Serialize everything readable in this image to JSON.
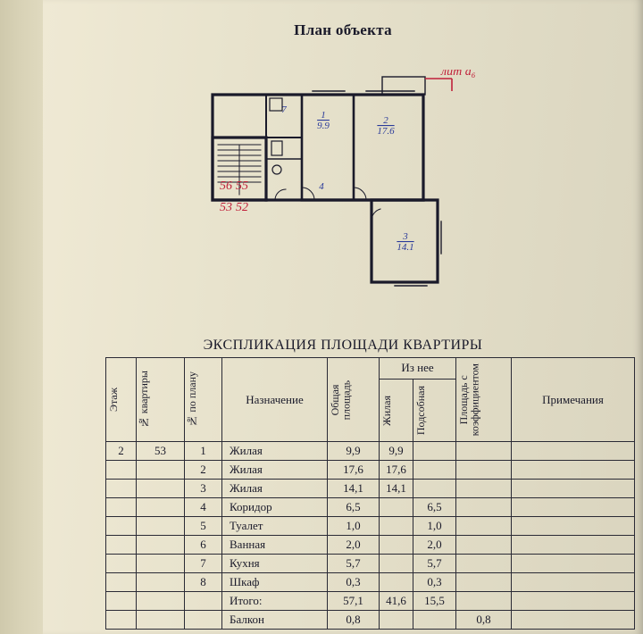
{
  "doc": {
    "title": "План объекта",
    "table_title": "ЭКСПЛИКАЦИЯ ПЛОЩАДИ КВАРТИРЫ",
    "handwriting": {
      "top_note": "лит а₆"
    }
  },
  "plan": {
    "rooms": [
      {
        "id": "1",
        "area": "9.9"
      },
      {
        "id": "2",
        "area": "17.6"
      },
      {
        "id": "3",
        "area": "14.1"
      },
      {
        "id": "4",
        "area": ""
      },
      {
        "id": "7",
        "area": ""
      }
    ],
    "red_labels": [
      "56",
      "55",
      "53",
      "52"
    ]
  },
  "table": {
    "headers": {
      "floor": "Этаж",
      "apt_no": "№ квартиры",
      "plan_no": "№ по плану",
      "purpose": "Назначение",
      "total_area": "Общая площадь",
      "of_it": "Из нее",
      "living": "Жилая",
      "aux": "Подсобная",
      "coef": "Площадь с коэффициентом",
      "notes": "Примечания"
    },
    "rows": [
      {
        "floor": "2",
        "apt": "53",
        "no": "1",
        "purpose": "Жилая",
        "total": "9,9",
        "living": "9,9",
        "aux": "",
        "coef": "",
        "notes": ""
      },
      {
        "floor": "",
        "apt": "",
        "no": "2",
        "purpose": "Жилая",
        "total": "17,6",
        "living": "17,6",
        "aux": "",
        "coef": "",
        "notes": ""
      },
      {
        "floor": "",
        "apt": "",
        "no": "3",
        "purpose": "Жилая",
        "total": "14,1",
        "living": "14,1",
        "aux": "",
        "coef": "",
        "notes": ""
      },
      {
        "floor": "",
        "apt": "",
        "no": "4",
        "purpose": "Коридор",
        "total": "6,5",
        "living": "",
        "aux": "6,5",
        "coef": "",
        "notes": ""
      },
      {
        "floor": "",
        "apt": "",
        "no": "5",
        "purpose": "Туалет",
        "total": "1,0",
        "living": "",
        "aux": "1,0",
        "coef": "",
        "notes": ""
      },
      {
        "floor": "",
        "apt": "",
        "no": "6",
        "purpose": "Ванная",
        "total": "2,0",
        "living": "",
        "aux": "2,0",
        "coef": "",
        "notes": ""
      },
      {
        "floor": "",
        "apt": "",
        "no": "7",
        "purpose": "Кухня",
        "total": "5,7",
        "living": "",
        "aux": "5,7",
        "coef": "",
        "notes": ""
      },
      {
        "floor": "",
        "apt": "",
        "no": "8",
        "purpose": "Шкаф",
        "total": "0,3",
        "living": "",
        "aux": "0,3",
        "coef": "",
        "notes": ""
      },
      {
        "floor": "",
        "apt": "",
        "no": "",
        "purpose": "Итого:",
        "total": "57,1",
        "living": "41,6",
        "aux": "15,5",
        "coef": "",
        "notes": ""
      },
      {
        "floor": "",
        "apt": "",
        "no": "",
        "purpose": "Балкон",
        "total": "0,8",
        "living": "",
        "aux": "",
        "coef": "0,8",
        "notes": ""
      }
    ]
  },
  "style": {
    "paper_bg": "#e8e3cd",
    "ink": "#1a1a2a",
    "red_pen": "#c0203a",
    "blue_pen": "#2a3a9a",
    "border": "#2a2a35",
    "font": "Times New Roman"
  }
}
